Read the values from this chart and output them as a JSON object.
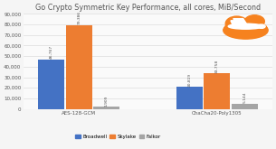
{
  "title": "Go Crypto Symmetric Key Performance, all cores, MiB/Second",
  "groups": [
    "AES-128-GCM",
    "ChaCha20-Poly1305"
  ],
  "series": [
    "Broadwell",
    "Skylake",
    "Falkor"
  ],
  "values": [
    [
      46767,
      79386,
      1909
    ],
    [
      20819,
      33758,
      5144
    ]
  ],
  "bar_labels": [
    [
      "46,767",
      "79,386",
      "1,909"
    ],
    [
      "20,819",
      "33,758",
      "5,144"
    ]
  ],
  "colors": [
    "#4472C4",
    "#ED7D31",
    "#A5A5A5"
  ],
  "ylim": [
    0,
    90000
  ],
  "yticks": [
    0,
    10000,
    20000,
    30000,
    40000,
    50000,
    60000,
    70000,
    80000,
    90000
  ],
  "ytick_labels": [
    "0",
    "10,000",
    "20,000",
    "30,000",
    "40,000",
    "50,000",
    "60,000",
    "70,000",
    "80,000",
    "90,000"
  ],
  "bg_color": "#F5F5F5",
  "plot_bg": "#FAFAFA",
  "grid_color": "#DDDDDD",
  "title_fontsize": 5.8,
  "tick_fontsize": 4.0,
  "legend_fontsize": 4.0,
  "bar_label_fontsize": 3.2,
  "logo_orange": "#F6821F",
  "logo_white": "#FFFFFF",
  "text_color": "#555555"
}
